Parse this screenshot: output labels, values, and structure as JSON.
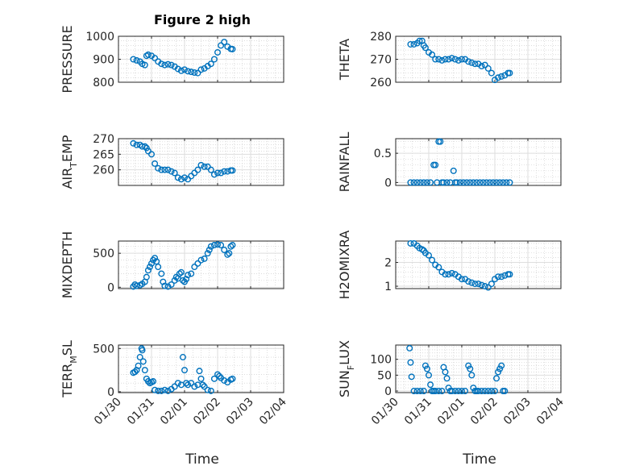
{
  "figure": {
    "title": "Figure 2 high",
    "marker_color": "#0072BD"
  },
  "chart_data": [
    {
      "type": "scatter",
      "name": "PRESSURE",
      "ylabel": "PRESSURE",
      "ylim": [
        800,
        1000
      ],
      "yticks": [
        "800",
        "900",
        "1000"
      ],
      "yticks_v": [
        800,
        900,
        1000
      ],
      "grid": "on",
      "x": [
        0.45,
        0.55,
        0.65,
        0.72,
        0.8,
        0.85,
        0.9,
        1.0,
        1.1,
        1.2,
        1.3,
        1.4,
        1.5,
        1.6,
        1.7,
        1.8,
        1.9,
        2.0,
        2.1,
        2.2,
        2.3,
        2.4,
        2.5,
        2.6,
        2.7,
        2.8,
        2.9,
        3.0,
        3.1,
        3.2,
        3.3,
        3.4,
        3.45
      ],
      "y": [
        900,
        895,
        890,
        880,
        875,
        915,
        920,
        915,
        905,
        890,
        880,
        875,
        878,
        875,
        868,
        858,
        850,
        855,
        848,
        845,
        842,
        840,
        855,
        860,
        870,
        880,
        900,
        930,
        960,
        975,
        955,
        945,
        944
      ]
    },
    {
      "type": "scatter",
      "name": "THETA",
      "ylabel": "THETA",
      "ylim": [
        260,
        280
      ],
      "yticks": [
        "260",
        "270",
        "280"
      ],
      "yticks_v": [
        260,
        270,
        280
      ],
      "grid": "on",
      "x": [
        0.45,
        0.55,
        0.65,
        0.72,
        0.8,
        0.85,
        0.9,
        1.0,
        1.1,
        1.2,
        1.3,
        1.4,
        1.5,
        1.6,
        1.7,
        1.8,
        1.9,
        2.0,
        2.1,
        2.2,
        2.3,
        2.4,
        2.5,
        2.6,
        2.7,
        2.8,
        2.9,
        3.0,
        3.1,
        3.2,
        3.3,
        3.4,
        3.45
      ],
      "y": [
        276.5,
        276.5,
        277,
        278,
        278,
        276,
        275,
        273,
        272,
        270,
        270,
        269.5,
        270,
        270,
        270.5,
        270,
        269.5,
        270,
        270,
        269,
        268.5,
        268,
        268,
        267,
        267.5,
        266,
        264,
        261,
        262,
        262.5,
        263,
        264,
        264
      ]
    },
    {
      "type": "scatter",
      "name": "AIR_TEMP",
      "ylabel": "AIR",
      "ylabel_sub": "T",
      "ylabel_rest": "EMP",
      "ylim": [
        255,
        270
      ],
      "yticks": [
        "260",
        "265",
        "270"
      ],
      "yticks_v": [
        260,
        265,
        270
      ],
      "grid": "on",
      "x": [
        0.45,
        0.55,
        0.65,
        0.72,
        0.8,
        0.85,
        0.9,
        1.0,
        1.1,
        1.2,
        1.3,
        1.4,
        1.5,
        1.6,
        1.7,
        1.8,
        1.9,
        2.0,
        2.1,
        2.2,
        2.3,
        2.4,
        2.5,
        2.6,
        2.7,
        2.8,
        2.9,
        3.0,
        3.1,
        3.2,
        3.3,
        3.4,
        3.45
      ],
      "y": [
        268.5,
        268,
        268,
        267.5,
        267.5,
        267,
        266,
        265,
        262,
        260.5,
        260,
        260,
        260,
        259.5,
        259,
        257.5,
        257,
        257.5,
        257,
        258,
        259,
        260,
        261.5,
        261,
        261,
        260,
        258.5,
        259,
        259,
        259.5,
        259.5,
        259.8,
        259.8
      ]
    },
    {
      "type": "scatter",
      "name": "RAINFALL",
      "ylabel": "RAINFALL",
      "ylim": [
        -0.05,
        0.75
      ],
      "yticks": [
        "0",
        "0.5"
      ],
      "yticks_v": [
        0,
        0.5
      ],
      "grid": "on",
      "x": [
        0.45,
        0.55,
        0.65,
        0.75,
        0.85,
        0.95,
        1.05,
        1.15,
        1.2,
        1.25,
        1.3,
        1.35,
        1.4,
        1.45,
        1.55,
        1.65,
        1.75,
        1.8,
        1.85,
        1.95,
        2.05,
        2.15,
        2.25,
        2.35,
        2.45,
        2.55,
        2.65,
        2.75,
        2.85,
        2.95,
        3.05,
        3.15,
        3.25,
        3.35,
        3.45
      ],
      "y": [
        0,
        0,
        0,
        0,
        0,
        0,
        0,
        0.3,
        0.3,
        0,
        0.7,
        0.7,
        0,
        0,
        0,
        0,
        0.2,
        0,
        0,
        0,
        0,
        0,
        0,
        0,
        0,
        0,
        0,
        0,
        0,
        0,
        0,
        0,
        0,
        0,
        0
      ]
    },
    {
      "type": "scatter",
      "name": "MIXDEPTH",
      "ylabel": "MIXDEPTH",
      "ylim": [
        -20,
        680
      ],
      "yticks": [
        "0",
        "500"
      ],
      "yticks_v": [
        0,
        500
      ],
      "grid": "on",
      "x": [
        0.45,
        0.5,
        0.55,
        0.65,
        0.72,
        0.8,
        0.85,
        0.9,
        0.95,
        1.0,
        1.05,
        1.1,
        1.15,
        1.2,
        1.3,
        1.35,
        1.4,
        1.5,
        1.6,
        1.7,
        1.75,
        1.8,
        1.85,
        1.9,
        1.95,
        2.0,
        2.05,
        2.1,
        2.2,
        2.3,
        2.4,
        2.5,
        2.6,
        2.7,
        2.75,
        2.8,
        2.9,
        3.0,
        3.1,
        3.2,
        3.3,
        3.35,
        3.4,
        3.45
      ],
      "y": [
        10,
        40,
        20,
        30,
        50,
        80,
        150,
        250,
        300,
        350,
        400,
        430,
        380,
        300,
        200,
        80,
        20,
        10,
        40,
        100,
        150,
        130,
        200,
        220,
        100,
        80,
        120,
        180,
        200,
        300,
        350,
        400,
        420,
        500,
        550,
        600,
        620,
        630,
        620,
        550,
        480,
        500,
        600,
        620
      ]
    },
    {
      "type": "scatter",
      "name": "H2OMIXRA",
      "ylabel": "H2OMIXRA",
      "ylim": [
        0.9,
        2.9
      ],
      "yticks": [
        "1",
        "2"
      ],
      "yticks_v": [
        1,
        2
      ],
      "grid": "on",
      "x": [
        0.45,
        0.55,
        0.65,
        0.72,
        0.8,
        0.85,
        0.9,
        1.0,
        1.1,
        1.2,
        1.3,
        1.4,
        1.5,
        1.6,
        1.7,
        1.8,
        1.9,
        2.0,
        2.1,
        2.2,
        2.3,
        2.4,
        2.5,
        2.6,
        2.7,
        2.8,
        2.9,
        3.0,
        3.1,
        3.2,
        3.3,
        3.4,
        3.45
      ],
      "y": [
        2.8,
        2.8,
        2.7,
        2.6,
        2.55,
        2.5,
        2.4,
        2.3,
        2.1,
        1.9,
        1.8,
        1.6,
        1.5,
        1.5,
        1.55,
        1.5,
        1.4,
        1.3,
        1.3,
        1.2,
        1.15,
        1.1,
        1.1,
        1.05,
        1.0,
        0.95,
        1.1,
        1.3,
        1.4,
        1.4,
        1.45,
        1.5,
        1.5
      ]
    },
    {
      "type": "scatter",
      "name": "TERR_MSL",
      "ylabel": "TERR",
      "ylabel_sub": "M",
      "ylabel_rest": "SL",
      "ylim": [
        -10,
        540
      ],
      "yticks": [
        "0",
        "500"
      ],
      "yticks_v": [
        0,
        500
      ],
      "grid": "on",
      "x": [
        0.45,
        0.5,
        0.55,
        0.6,
        0.65,
        0.7,
        0.72,
        0.75,
        0.8,
        0.85,
        0.9,
        0.95,
        1.0,
        1.05,
        1.1,
        1.2,
        1.3,
        1.4,
        1.5,
        1.6,
        1.7,
        1.8,
        1.9,
        1.95,
        2.0,
        2.05,
        2.1,
        2.2,
        2.3,
        2.4,
        2.45,
        2.5,
        2.55,
        2.6,
        2.7,
        2.8,
        2.9,
        3.0,
        3.05,
        3.1,
        3.2,
        3.3,
        3.4,
        3.45
      ],
      "y": [
        220,
        230,
        250,
        300,
        400,
        500,
        480,
        350,
        250,
        150,
        120,
        100,
        110,
        120,
        20,
        10,
        10,
        20,
        10,
        30,
        60,
        100,
        80,
        400,
        250,
        100,
        80,
        100,
        60,
        80,
        240,
        150,
        80,
        60,
        20,
        10,
        150,
        200,
        180,
        160,
        130,
        110,
        140,
        150
      ]
    },
    {
      "type": "scatter",
      "name": "SUN_FLUX",
      "ylabel": "SUN",
      "ylabel_sub": "F",
      "ylabel_rest": "LUX",
      "ylim": [
        -5,
        145
      ],
      "yticks": [
        "0",
        "50",
        "100"
      ],
      "yticks_v": [
        0,
        50,
        100
      ],
      "grid": "on",
      "x": [
        0.42,
        0.45,
        0.48,
        0.55,
        0.65,
        0.75,
        0.85,
        0.9,
        0.95,
        1.0,
        1.05,
        1.1,
        1.15,
        1.2,
        1.3,
        1.4,
        1.45,
        1.5,
        1.55,
        1.6,
        1.65,
        1.7,
        1.8,
        1.9,
        2.0,
        2.1,
        2.2,
        2.25,
        2.3,
        2.35,
        2.4,
        2.45,
        2.5,
        2.6,
        2.7,
        2.8,
        2.9,
        3.0,
        3.05,
        3.1,
        3.15,
        3.2,
        3.25,
        3.3
      ],
      "y": [
        135,
        90,
        45,
        0,
        0,
        0,
        0,
        80,
        70,
        50,
        20,
        0,
        0,
        0,
        0,
        0,
        75,
        60,
        40,
        10,
        0,
        0,
        0,
        0,
        0,
        0,
        80,
        70,
        50,
        10,
        0,
        0,
        0,
        0,
        0,
        0,
        0,
        0,
        40,
        60,
        70,
        80,
        0,
        0
      ]
    }
  ],
  "xaxis": {
    "ticks": [
      "01/30",
      "01/31",
      "02/01",
      "02/02",
      "02/03",
      "02/04"
    ],
    "label": "Time"
  }
}
